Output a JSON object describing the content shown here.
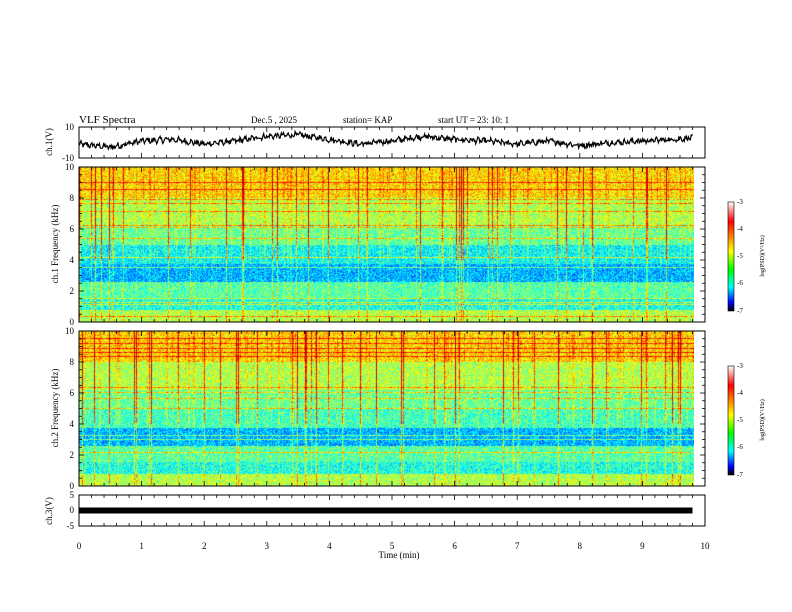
{
  "header": {
    "title": "VLF Spectra",
    "date": "Dec.5 , 2025",
    "station": "station= KAP",
    "start_ut": "start UT =  23: 10: 1"
  },
  "chart_data": [
    {
      "type": "line",
      "id": "ch1-waveform",
      "ylabel": "ch.1(V)",
      "ylim": [
        -10,
        10
      ],
      "ytick_labels": [
        "10",
        "-10"
      ],
      "xlim": [
        0,
        10
      ],
      "data_xmax": 9.8,
      "description_of_trend": "noisy waveform fluctuating roughly between -4 and 6 V",
      "y_key_points": [
        [
          0,
          -1
        ],
        [
          0.5,
          -3
        ],
        [
          1,
          1
        ],
        [
          1.5,
          2
        ],
        [
          2,
          -1
        ],
        [
          2.5,
          1
        ],
        [
          3,
          4
        ],
        [
          3.5,
          5
        ],
        [
          4,
          2
        ],
        [
          4.5,
          -1
        ],
        [
          5,
          1
        ],
        [
          5.5,
          4
        ],
        [
          6,
          2
        ],
        [
          6.5,
          1
        ],
        [
          7,
          -1
        ],
        [
          7.5,
          1
        ],
        [
          8,
          -2
        ],
        [
          8.5,
          0
        ],
        [
          9,
          1
        ],
        [
          9.5,
          2
        ],
        [
          9.8,
          3
        ]
      ]
    },
    {
      "type": "heatmap",
      "id": "ch1-spectrogram",
      "ylabel": "ch.1 Frequency (kHz)",
      "ylim": [
        0,
        10
      ],
      "ytick_labels": [
        "0",
        "2",
        "4",
        "6",
        "8",
        "10"
      ],
      "xlim": [
        0,
        10
      ],
      "data_xmax": 9.8,
      "colorbar": {
        "label": "log(PSD)(V²/Hz)",
        "range": [
          -7,
          -3
        ],
        "tick_labels": [
          "-3",
          "-4",
          "-5",
          "-6",
          "-7"
        ]
      }
    },
    {
      "type": "heatmap",
      "id": "ch2-spectrogram",
      "ylabel": "ch.2 Frequency (kHz)",
      "ylim": [
        0,
        10
      ],
      "ytick_labels": [
        "0",
        "2",
        "4",
        "6",
        "8",
        "10"
      ],
      "xlim": [
        0,
        10
      ],
      "data_xmax": 9.8,
      "colorbar": {
        "label": "log(PSD)(V²/Hz)",
        "range": [
          -7,
          -3
        ],
        "tick_labels": [
          "-3",
          "-4",
          "-5",
          "-6",
          "-7"
        ]
      }
    },
    {
      "type": "line",
      "id": "ch3-waveform",
      "ylabel": "ch.3(V)",
      "ylim": [
        -5,
        5
      ],
      "ytick_labels": [
        "5",
        "0",
        "-5"
      ],
      "xlim": [
        0,
        10
      ],
      "data_xmax": 9.8,
      "constant_value": 0,
      "xlabel": "Time (min)",
      "xtick_labels": [
        "0",
        "1",
        "2",
        "3",
        "4",
        "5",
        "6",
        "7",
        "8",
        "9",
        "10"
      ]
    }
  ]
}
